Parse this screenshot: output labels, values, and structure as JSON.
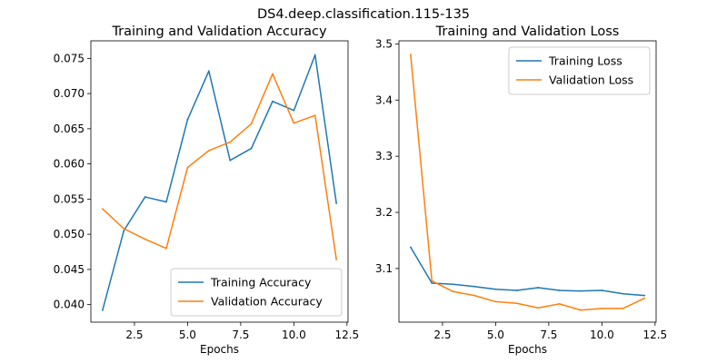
{
  "suptitle": "DS4.deep.classification.115-135",
  "chart_data": [
    {
      "type": "line",
      "title": "Training and Validation Accuracy",
      "xlabel": "Epochs",
      "ylabel": "",
      "xlim": [
        0.45,
        12.55
      ],
      "ylim": [
        0.0375,
        0.0775
      ],
      "xticks": [
        2.5,
        5.0,
        7.5,
        10.0,
        12.5
      ],
      "xtick_labels": [
        "2.5",
        "5.0",
        "7.5",
        "10.0",
        "12.5"
      ],
      "yticks": [
        0.04,
        0.045,
        0.05,
        0.055,
        0.06,
        0.065,
        0.07,
        0.075
      ],
      "ytick_labels": [
        "0.040",
        "0.045",
        "0.050",
        "0.055",
        "0.060",
        "0.065",
        "0.070",
        "0.075"
      ],
      "legend_position": "bottom-right",
      "grid": false,
      "x": [
        1,
        2,
        3,
        4,
        5,
        6,
        7,
        8,
        9,
        10,
        11,
        12
      ],
      "series": [
        {
          "name": "Training Accuracy",
          "color": "#1f77b4",
          "values": [
            0.0392,
            0.0505,
            0.0553,
            0.0546,
            0.0663,
            0.0732,
            0.0605,
            0.0622,
            0.0689,
            0.0676,
            0.0755,
            0.0544
          ]
        },
        {
          "name": "Validation Accuracy",
          "color": "#ff7f0e",
          "values": [
            0.0536,
            0.0508,
            0.0493,
            0.048,
            0.0595,
            0.0619,
            0.0631,
            0.0657,
            0.0728,
            0.0658,
            0.0669,
            0.0464
          ]
        }
      ]
    },
    {
      "type": "line",
      "title": "Training and Validation Loss",
      "xlabel": "Epochs",
      "ylabel": "",
      "xlim": [
        0.45,
        12.55
      ],
      "ylim": [
        3.0045,
        3.5055
      ],
      "xticks": [
        2.5,
        5.0,
        7.5,
        10.0,
        12.5
      ],
      "xtick_labels": [
        "2.5",
        "5.0",
        "7.5",
        "10.0",
        "12.5"
      ],
      "yticks": [
        3.1,
        3.2,
        3.3,
        3.4,
        3.5
      ],
      "ytick_labels": [
        "3.1",
        "3.2",
        "3.3",
        "3.4",
        "3.5"
      ],
      "legend_position": "top-right",
      "grid": false,
      "x": [
        1,
        2,
        3,
        4,
        5,
        6,
        7,
        8,
        9,
        10,
        11,
        12
      ],
      "series": [
        {
          "name": "Training Loss",
          "color": "#1f77b4",
          "values": [
            3.138,
            3.074,
            3.072,
            3.068,
            3.063,
            3.061,
            3.066,
            3.061,
            3.06,
            3.061,
            3.055,
            3.052
          ]
        },
        {
          "name": "Validation Loss",
          "color": "#ff7f0e",
          "values": [
            3.481,
            3.078,
            3.059,
            3.052,
            3.041,
            3.038,
            3.03,
            3.037,
            3.026,
            3.029,
            3.029,
            3.047
          ]
        }
      ]
    }
  ]
}
